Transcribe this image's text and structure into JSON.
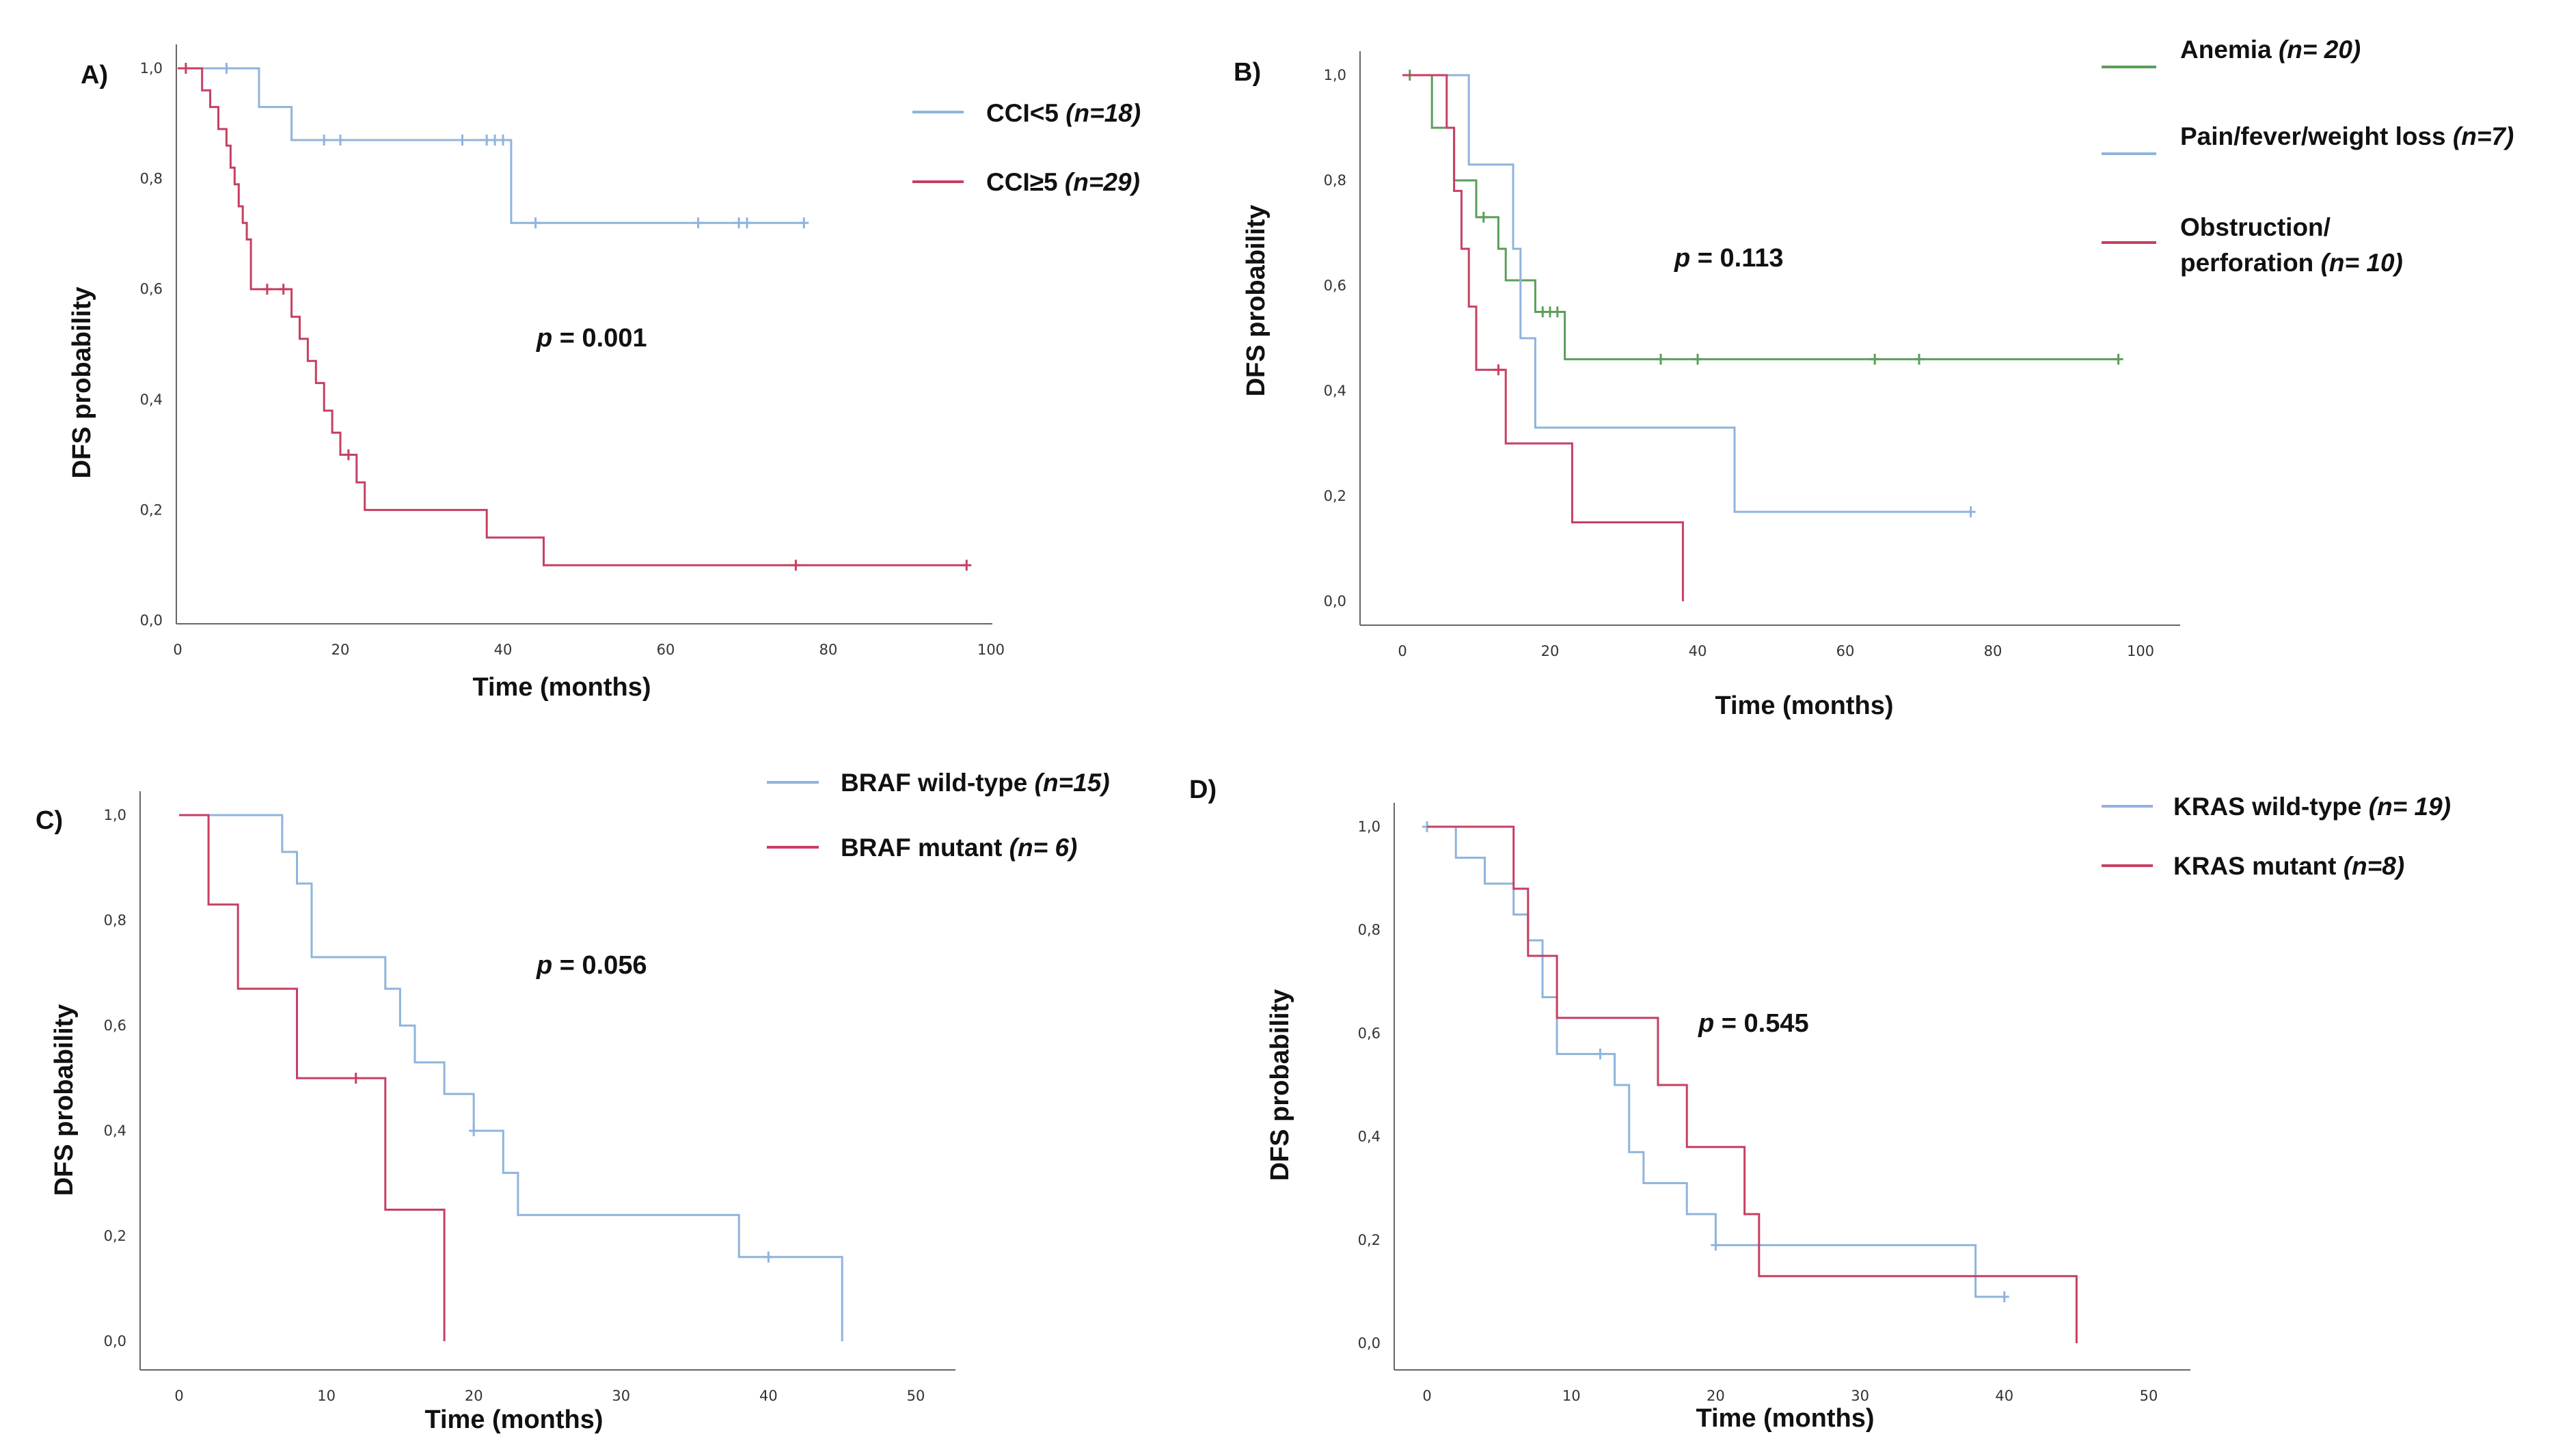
{
  "colors": {
    "blue": "#8fb4dc",
    "red": "#c73f62",
    "green": "#5a9e5a",
    "axis": "#666666"
  },
  "chart_data": [
    {
      "type": "line",
      "panel_label": "A)",
      "xlabel": "Time (months)",
      "ylabel": "DFS probability",
      "xlim": [
        0,
        100
      ],
      "ylim": [
        0,
        1
      ],
      "xticks": [
        "0",
        "20",
        "40",
        "60",
        "80",
        "100"
      ],
      "yticks": [
        "0,0",
        "0,2",
        "0,4",
        "0,6",
        "0,8",
        "1,0"
      ],
      "annotation": {
        "prefix": "p",
        "text": " = 0.001"
      },
      "series": [
        {
          "name": "CCI<5",
          "label_main": "CCI<5 ",
          "label_n": "(n=18)",
          "color": "blue",
          "steps": [
            [
              0,
              1.0
            ],
            [
              10,
              0.93
            ],
            [
              14,
              0.87
            ],
            [
              41,
              0.72
            ],
            [
              77,
              0.72
            ]
          ],
          "censors": [
            [
              6,
              1.0
            ],
            [
              18,
              0.87
            ],
            [
              20,
              0.87
            ],
            [
              35,
              0.87
            ],
            [
              38,
              0.87
            ],
            [
              39,
              0.87
            ],
            [
              40,
              0.87
            ],
            [
              44,
              0.72
            ],
            [
              64,
              0.72
            ],
            [
              69,
              0.72
            ],
            [
              70,
              0.72
            ],
            [
              77,
              0.72
            ]
          ]
        },
        {
          "name": "CCI≥5",
          "label_main": "CCI≥5 ",
          "label_n": "(n=29)",
          "color": "red",
          "steps": [
            [
              0,
              1.0
            ],
            [
              3,
              0.96
            ],
            [
              4,
              0.93
            ],
            [
              5,
              0.89
            ],
            [
              6,
              0.86
            ],
            [
              6.5,
              0.82
            ],
            [
              7,
              0.79
            ],
            [
              7.5,
              0.75
            ],
            [
              8,
              0.72
            ],
            [
              8.5,
              0.69
            ],
            [
              9,
              0.6
            ],
            [
              13,
              0.6
            ],
            [
              14,
              0.55
            ],
            [
              15,
              0.51
            ],
            [
              16,
              0.47
            ],
            [
              17,
              0.43
            ],
            [
              18,
              0.38
            ],
            [
              19,
              0.34
            ],
            [
              20,
              0.3
            ],
            [
              22,
              0.25
            ],
            [
              23,
              0.2
            ],
            [
              38,
              0.15
            ],
            [
              45,
              0.1
            ],
            [
              97,
              0.1
            ]
          ],
          "censors": [
            [
              1,
              1.0
            ],
            [
              11,
              0.6
            ],
            [
              13,
              0.6
            ],
            [
              21,
              0.3
            ],
            [
              76,
              0.1
            ],
            [
              97,
              0.1
            ]
          ]
        }
      ]
    },
    {
      "type": "line",
      "panel_label": "B)",
      "xlabel": "Time (months)",
      "ylabel": "DFS probability",
      "xlim": [
        0,
        100
      ],
      "ylim": [
        0,
        1
      ],
      "xticks": [
        "0",
        "20",
        "40",
        "60",
        "80",
        "100"
      ],
      "yticks": [
        "0,0",
        "0,2",
        "0,4",
        "0,6",
        "0,8",
        "1,0"
      ],
      "annotation": {
        "prefix": "p",
        "text": " = 0.113"
      },
      "series": [
        {
          "name": "Anemia",
          "label_main": "Anemia ",
          "label_n": "(n= 20)",
          "color": "green",
          "steps": [
            [
              0,
              1.0
            ],
            [
              4,
              0.9
            ],
            [
              7,
              0.8
            ],
            [
              10,
              0.73
            ],
            [
              13,
              0.67
            ],
            [
              14,
              0.61
            ],
            [
              18,
              0.55
            ],
            [
              22,
              0.46
            ],
            [
              97,
              0.46
            ]
          ],
          "censors": [
            [
              1,
              1.0
            ],
            [
              11,
              0.73
            ],
            [
              19,
              0.55
            ],
            [
              20,
              0.55
            ],
            [
              21,
              0.55
            ],
            [
              35,
              0.46
            ],
            [
              40,
              0.46
            ],
            [
              64,
              0.46
            ],
            [
              70,
              0.46
            ],
            [
              97,
              0.46
            ]
          ]
        },
        {
          "name": "Pain/fever/weight loss",
          "label_main": "Pain/fever/weight loss ",
          "label_n": "(n=7)",
          "color": "blue",
          "steps": [
            [
              0,
              1.0
            ],
            [
              9,
              0.83
            ],
            [
              15,
              0.67
            ],
            [
              16,
              0.5
            ],
            [
              18,
              0.33
            ],
            [
              45,
              0.17
            ],
            [
              77,
              0.17
            ]
          ],
          "censors": [
            [
              77,
              0.17
            ]
          ]
        },
        {
          "name": "Obstruction/perforation",
          "label_line1": "Obstruction/",
          "label_main": "perforation ",
          "label_n": "(n= 10)",
          "color": "red",
          "steps": [
            [
              0,
              1.0
            ],
            [
              6,
              0.9
            ],
            [
              7,
              0.78
            ],
            [
              8,
              0.67
            ],
            [
              9,
              0.56
            ],
            [
              10,
              0.44
            ],
            [
              14,
              0.3
            ],
            [
              23,
              0.15
            ],
            [
              38,
              0.0
            ]
          ],
          "censors": [
            [
              13,
              0.44
            ]
          ]
        }
      ]
    },
    {
      "type": "line",
      "panel_label": "C)",
      "xlabel": "Time (months)",
      "ylabel": "DFS probability",
      "xlim": [
        0,
        50
      ],
      "ylim": [
        0,
        1
      ],
      "xticks": [
        "0",
        "10",
        "20",
        "30",
        "40",
        "50"
      ],
      "yticks": [
        "0,0",
        "0,2",
        "0,4",
        "0,6",
        "0,8",
        "1,0"
      ],
      "annotation": {
        "prefix": "p",
        "text": " = 0.056"
      },
      "series": [
        {
          "name": "BRAF wild-type",
          "label_main": "BRAF wild-type ",
          "label_n": "(n=15)",
          "color": "blue",
          "steps": [
            [
              0,
              1.0
            ],
            [
              7,
              0.93
            ],
            [
              8,
              0.87
            ],
            [
              9,
              0.73
            ],
            [
              14,
              0.67
            ],
            [
              15,
              0.6
            ],
            [
              16,
              0.53
            ],
            [
              18,
              0.47
            ],
            [
              20,
              0.4
            ],
            [
              22,
              0.32
            ],
            [
              23,
              0.24
            ],
            [
              38,
              0.16
            ],
            [
              45,
              0.0
            ]
          ],
          "censors": [
            [
              20,
              0.4
            ],
            [
              40,
              0.16
            ]
          ]
        },
        {
          "name": "BRAF mutant",
          "label_main": "BRAF mutant ",
          "label_n": "(n= 6)",
          "color": "red",
          "steps": [
            [
              0,
              1.0
            ],
            [
              2,
              0.83
            ],
            [
              4,
              0.67
            ],
            [
              8,
              0.5
            ],
            [
              14,
              0.25
            ],
            [
              18,
              0.0
            ]
          ],
          "censors": [
            [
              12,
              0.5
            ]
          ]
        }
      ]
    },
    {
      "type": "line",
      "panel_label": "D)",
      "xlabel": "Time (months)",
      "ylabel": "DFS probability",
      "xlim": [
        0,
        50
      ],
      "ylim": [
        0,
        1
      ],
      "xticks": [
        "0",
        "10",
        "20",
        "30",
        "40",
        "50"
      ],
      "yticks": [
        "0,0",
        "0,2",
        "0,4",
        "0,6",
        "0,8",
        "1,0"
      ],
      "annotation": {
        "prefix": "p",
        "text": " = 0.545"
      },
      "series": [
        {
          "name": "KRAS wild-type",
          "label_main": "KRAS wild-type ",
          "label_n": "(n= 19)",
          "color": "blue",
          "steps": [
            [
              0,
              1.0
            ],
            [
              2,
              0.94
            ],
            [
              4,
              0.89
            ],
            [
              6,
              0.83
            ],
            [
              7,
              0.78
            ],
            [
              8,
              0.67
            ],
            [
              9,
              0.56
            ],
            [
              13,
              0.5
            ],
            [
              14,
              0.37
            ],
            [
              15,
              0.31
            ],
            [
              18,
              0.25
            ],
            [
              20,
              0.19
            ],
            [
              38,
              0.09
            ],
            [
              40,
              0.09
            ]
          ],
          "censors": [
            [
              0,
              1.0
            ],
            [
              12,
              0.56
            ],
            [
              20,
              0.19
            ],
            [
              40,
              0.09
            ]
          ]
        },
        {
          "name": "KRAS mutant",
          "label_main": "KRAS mutant ",
          "label_n": "(n=8)",
          "color": "red",
          "steps": [
            [
              0,
              1.0
            ],
            [
              6,
              0.88
            ],
            [
              7,
              0.75
            ],
            [
              9,
              0.63
            ],
            [
              16,
              0.5
            ],
            [
              18,
              0.38
            ],
            [
              22,
              0.25
            ],
            [
              23,
              0.13
            ],
            [
              45,
              0.0
            ]
          ],
          "censors": []
        }
      ]
    }
  ]
}
